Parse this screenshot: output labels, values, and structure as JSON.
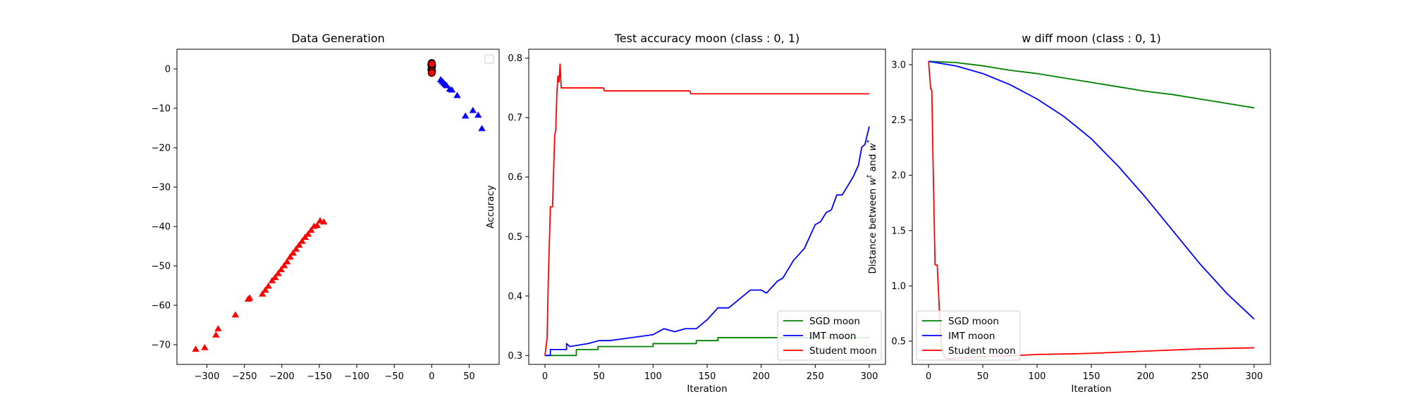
{
  "chart_data": [
    {
      "type": "scatter",
      "title": "Data Generation",
      "xlabel": "",
      "ylabel": "",
      "xlim": [
        -340,
        90
      ],
      "ylim": [
        -75,
        5
      ],
      "xticks": [
        -300,
        -250,
        -200,
        -150,
        -100,
        -50,
        0,
        50
      ],
      "yticks": [
        0,
        -10,
        -20,
        -30,
        -40,
        -50,
        -60,
        -70
      ],
      "grid": false,
      "legend": "top-right (empty box)",
      "series": [
        {
          "color": "#ff0000",
          "marker": "triangle",
          "points": [
            [
              -315,
              -71.2
            ],
            [
              -303,
              -70.8
            ],
            [
              -288,
              -67.6
            ],
            [
              -285,
              -66
            ],
            [
              -262,
              -62.5
            ],
            [
              -245,
              -58.5
            ],
            [
              -243,
              -58.2
            ],
            [
              -226,
              -57.2
            ],
            [
              -222,
              -56.2
            ],
            [
              -218,
              -55.2
            ],
            [
              -213,
              -53.8
            ],
            [
              -209,
              -53
            ],
            [
              -205,
              -52
            ],
            [
              -201,
              -51
            ],
            [
              -197,
              -50
            ],
            [
              -193,
              -49
            ],
            [
              -189,
              -47.8
            ],
            [
              -185,
              -46.8
            ],
            [
              -181,
              -45.8
            ],
            [
              -177,
              -44.8
            ],
            [
              -173,
              -43.8
            ],
            [
              -169,
              -42.8
            ],
            [
              -165,
              -42
            ],
            [
              -161,
              -41
            ],
            [
              -157,
              -40
            ],
            [
              -153,
              -39.8
            ],
            [
              -149,
              -38.6
            ],
            [
              -144,
              -38.9
            ]
          ]
        },
        {
          "color": "#0000ff",
          "marker": "triangle",
          "points": [
            [
              0,
              0.5
            ],
            [
              1,
              0.2
            ],
            [
              12,
              -2.8
            ],
            [
              14,
              -3.2
            ],
            [
              16,
              -3.6
            ],
            [
              18,
              -4
            ],
            [
              20,
              -4.3
            ],
            [
              24,
              -5.2
            ],
            [
              27,
              -5.4
            ],
            [
              34,
              -6.8
            ],
            [
              45,
              -12
            ],
            [
              55,
              -10.6
            ],
            [
              62,
              -11.8
            ],
            [
              67,
              -15.2
            ]
          ]
        },
        {
          "color": "#ff0000",
          "marker": "circle",
          "points": [
            [
              0,
              1.5
            ],
            [
              -0.5,
              1.1
            ],
            [
              0.5,
              0.8
            ],
            [
              0,
              0.3
            ],
            [
              -0.3,
              -0.2
            ],
            [
              0.4,
              -0.6
            ],
            [
              0,
              -1.0
            ],
            [
              0.2,
              1.3
            ]
          ]
        }
      ]
    },
    {
      "type": "line",
      "title": "Test accuracy moon (class : 0, 1)",
      "xlabel": "Iteration",
      "ylabel": "Accuracy",
      "xlim": [
        -15,
        315
      ],
      "ylim": [
        0.285,
        0.815
      ],
      "xticks": [
        0,
        50,
        100,
        150,
        200,
        250,
        300
      ],
      "yticks": [
        0.3,
        0.4,
        0.5,
        0.6,
        0.7,
        0.8
      ],
      "grid": false,
      "legend": "bottom-right",
      "series": [
        {
          "name": "SGD moon",
          "color": "#008000",
          "x": [
            0,
            29,
            29,
            49,
            49,
            55,
            55,
            100,
            100,
            120,
            120,
            140,
            140,
            160,
            160,
            300
          ],
          "values": [
            0.3,
            0.3,
            0.31,
            0.31,
            0.315,
            0.315,
            0.315,
            0.315,
            0.32,
            0.32,
            0.32,
            0.32,
            0.325,
            0.325,
            0.33,
            0.33
          ]
        },
        {
          "name": "IMT moon",
          "color": "#0000ff",
          "x": [
            0,
            5,
            5,
            20,
            20,
            23,
            40,
            50,
            60,
            80,
            100,
            110,
            120,
            130,
            140,
            150,
            160,
            165,
            170,
            180,
            190,
            200,
            205,
            210,
            215,
            220,
            230,
            240,
            245,
            250,
            255,
            260,
            265,
            270,
            275,
            280,
            285,
            290,
            293,
            296,
            298,
            300
          ],
          "values": [
            0.3,
            0.3,
            0.31,
            0.31,
            0.32,
            0.315,
            0.32,
            0.325,
            0.325,
            0.33,
            0.335,
            0.345,
            0.34,
            0.345,
            0.345,
            0.36,
            0.38,
            0.38,
            0.38,
            0.395,
            0.41,
            0.41,
            0.405,
            0.415,
            0.425,
            0.43,
            0.46,
            0.48,
            0.5,
            0.52,
            0.525,
            0.54,
            0.545,
            0.57,
            0.57,
            0.585,
            0.6,
            0.62,
            0.65,
            0.655,
            0.67,
            0.685
          ]
        },
        {
          "name": "Student moon",
          "color": "#ff0000",
          "x": [
            0,
            2,
            3,
            5,
            7,
            9,
            10,
            11,
            12,
            13,
            14,
            15,
            16,
            54,
            55,
            134,
            135,
            300
          ],
          "values": [
            0.3,
            0.33,
            0.42,
            0.55,
            0.55,
            0.67,
            0.68,
            0.74,
            0.77,
            0.76,
            0.79,
            0.75,
            0.75,
            0.75,
            0.745,
            0.745,
            0.74,
            0.74
          ]
        }
      ]
    },
    {
      "type": "line",
      "title": "w diff moon (class : 0, 1)",
      "xlabel": "Iteration",
      "ylabel_main": "Distance between ",
      "ylabel_w1": "w",
      "ylabel_s1": "t",
      "ylabel_and": " and ",
      "ylabel_w2": "w",
      "ylabel_s2": "*",
      "xlim": [
        -15,
        315
      ],
      "ylim": [
        0.29,
        3.14
      ],
      "xticks": [
        0,
        50,
        100,
        150,
        200,
        250,
        300
      ],
      "yticks": [
        0.5,
        1.0,
        1.5,
        2.0,
        2.5,
        3.0
      ],
      "grid": false,
      "legend": "bottom-left",
      "series": [
        {
          "name": "SGD moon",
          "color": "#008000",
          "x": [
            0,
            25,
            50,
            75,
            100,
            125,
            150,
            175,
            200,
            225,
            250,
            275,
            300
          ],
          "values": [
            3.03,
            3.02,
            2.99,
            2.95,
            2.92,
            2.88,
            2.84,
            2.8,
            2.76,
            2.73,
            2.69,
            2.65,
            2.61
          ]
        },
        {
          "name": "IMT moon",
          "color": "#0000ff",
          "x": [
            0,
            25,
            50,
            75,
            100,
            125,
            150,
            175,
            200,
            225,
            250,
            275,
            300
          ],
          "values": [
            3.03,
            2.99,
            2.92,
            2.82,
            2.69,
            2.53,
            2.33,
            2.08,
            1.8,
            1.5,
            1.2,
            0.93,
            0.7
          ]
        },
        {
          "name": "Student moon",
          "color": "#ff0000",
          "x": [
            0,
            2,
            3,
            4,
            6,
            7,
            8,
            10,
            11,
            12,
            13,
            15,
            17,
            20,
            30,
            50,
            80,
            100,
            130,
            150,
            200,
            250,
            300
          ],
          "values": [
            3.03,
            2.78,
            2.77,
            2.2,
            1.19,
            1.19,
            1.19,
            0.77,
            0.62,
            0.45,
            0.4,
            0.36,
            0.34,
            0.34,
            0.35,
            0.36,
            0.37,
            0.38,
            0.385,
            0.39,
            0.41,
            0.43,
            0.44
          ]
        }
      ]
    }
  ]
}
